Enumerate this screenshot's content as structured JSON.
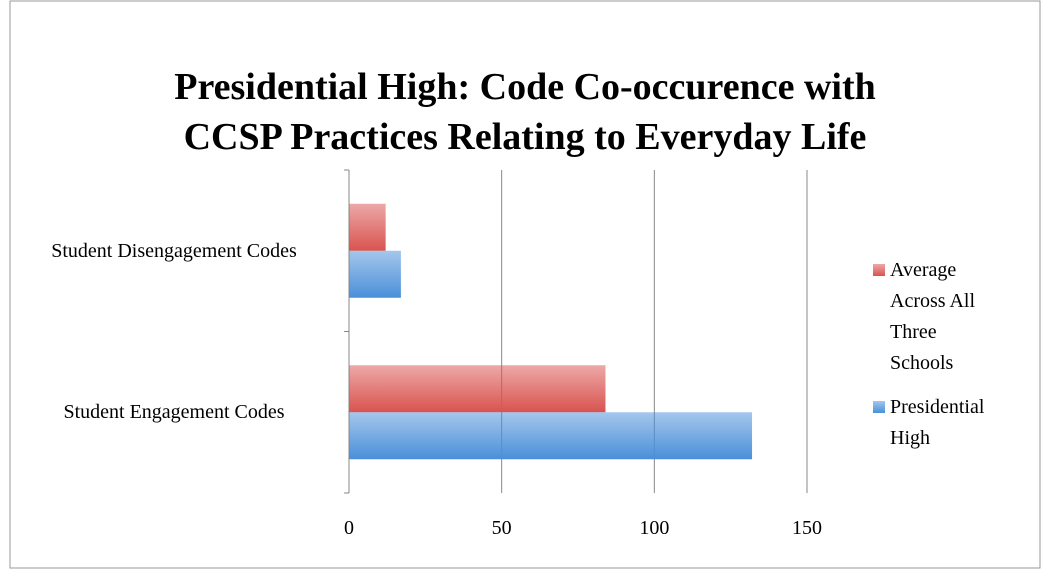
{
  "chart_data": {
    "type": "hbar",
    "title": "Presidential High: Code Co-occurence with CCSP Practices Relating to Everyday Life",
    "categories": [
      "Student Disengagement Codes",
      "Student Engagement Codes"
    ],
    "series": [
      {
        "name": "Average Across All Three Schools",
        "color": "#d9534f",
        "values": [
          12,
          84
        ]
      },
      {
        "name": "Presidential High",
        "color": "#4a8fd9",
        "values": [
          17,
          132
        ]
      }
    ],
    "xlim": [
      0,
      150
    ],
    "xticks": [
      0,
      50,
      100,
      150
    ],
    "grid": true,
    "legend": "right"
  }
}
